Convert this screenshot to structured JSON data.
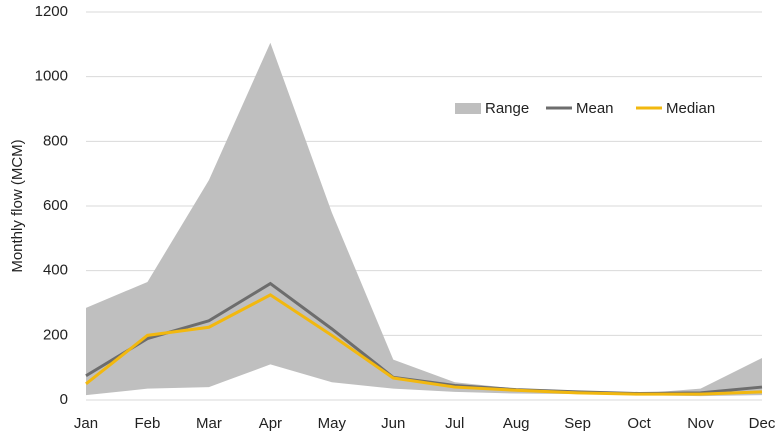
{
  "chart_data": {
    "type": "line",
    "y_label": "Monthly flow (MCM)",
    "categories": [
      "Jan",
      "Feb",
      "Mar",
      "Apr",
      "May",
      "Jun",
      "Jul",
      "Aug",
      "Sep",
      "Oct",
      "Nov",
      "Dec"
    ],
    "series": [
      {
        "name": "Range",
        "color": "#bfbfbf",
        "high": [
          285,
          365,
          680,
          1105,
          580,
          125,
          55,
          35,
          25,
          20,
          35,
          130
        ],
        "low": [
          15,
          35,
          40,
          110,
          55,
          35,
          25,
          20,
          18,
          15,
          12,
          15
        ]
      },
      {
        "name": "Mean",
        "color": "#6d6d6d",
        "values": [
          75,
          190,
          245,
          360,
          220,
          70,
          45,
          32,
          25,
          20,
          22,
          40
        ]
      },
      {
        "name": "Median",
        "color": "#f2b80f",
        "values": [
          50,
          200,
          225,
          325,
          200,
          68,
          40,
          30,
          22,
          18,
          18,
          25
        ]
      }
    ],
    "ylim": [
      0,
      1200
    ],
    "yticks": [
      0,
      200,
      400,
      600,
      800,
      1000,
      1200
    ],
    "grid": true
  }
}
